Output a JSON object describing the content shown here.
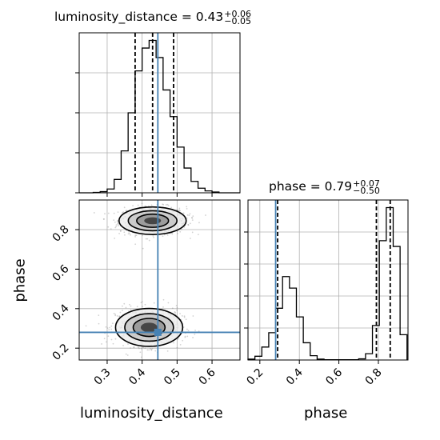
{
  "chart_data": [
    {
      "id": "hist-luminosity_distance",
      "type": "histogram",
      "title": {
        "param": "luminosity_distance",
        "median": "0.43",
        "plus": "+0.06",
        "minus": "−0.05"
      },
      "xlim": [
        0.22,
        0.68
      ],
      "quantiles": [
        0.38,
        0.43,
        0.49
      ],
      "truth": 0.445,
      "bin_edges": [
        0.22,
        0.24,
        0.26,
        0.28,
        0.3,
        0.32,
        0.34,
        0.36,
        0.38,
        0.4,
        0.42,
        0.44,
        0.46,
        0.48,
        0.5,
        0.52,
        0.54,
        0.56,
        0.58,
        0.6,
        0.62,
        0.64,
        0.66,
        0.68
      ],
      "counts": [
        0,
        0,
        1,
        3,
        10,
        35,
        110,
        210,
        320,
        380,
        400,
        355,
        270,
        200,
        120,
        65,
        30,
        12,
        5,
        2,
        0,
        0,
        0
      ]
    },
    {
      "id": "hist-phase",
      "type": "histogram",
      "title": {
        "param": "phase",
        "median": "0.79",
        "plus": "+0.07",
        "minus": "−0.50"
      },
      "xlim": [
        0.14,
        0.95
      ],
      "quantiles": [
        0.29,
        0.79,
        0.86
      ],
      "truth": 0.28,
      "bin_edges": [
        0.14,
        0.175,
        0.21,
        0.245,
        0.28,
        0.315,
        0.35,
        0.385,
        0.42,
        0.455,
        0.49,
        0.525,
        0.56,
        0.595,
        0.63,
        0.665,
        0.7,
        0.735,
        0.77,
        0.805,
        0.84,
        0.875,
        0.91,
        0.945
      ],
      "counts": [
        3,
        13,
        45,
        95,
        180,
        290,
        250,
        150,
        60,
        15,
        3,
        1,
        1,
        1,
        1,
        1,
        4,
        22,
        120,
        415,
        530,
        395,
        88
      ]
    },
    {
      "id": "hist2d-luminosity_distance-phase",
      "type": "scatter-density",
      "xlabel": "luminosity_distance",
      "ylabel": "phase",
      "xlim": [
        0.22,
        0.68
      ],
      "ylim": [
        0.14,
        0.95
      ],
      "xticks": [
        "0.3",
        "0.4",
        "0.5",
        "0.6"
      ],
      "yticks": [
        "0.2",
        "0.4",
        "0.6",
        "0.8"
      ],
      "truth": [
        0.445,
        0.28
      ],
      "modes": [
        {
          "cx": 0.43,
          "cy": 0.845,
          "sx": 0.048,
          "sy": 0.035,
          "weight": 0.55
        },
        {
          "cx": 0.42,
          "cy": 0.305,
          "sx": 0.048,
          "sy": 0.048,
          "weight": 0.45
        }
      ]
    }
  ],
  "diag_xticks": [
    "0.2",
    "0.4",
    "0.6",
    "0.8"
  ],
  "colors": {
    "truth": "#4682b4",
    "hist": "#000000",
    "grid": "#b0b0b0",
    "points": "#7f7f7f"
  }
}
